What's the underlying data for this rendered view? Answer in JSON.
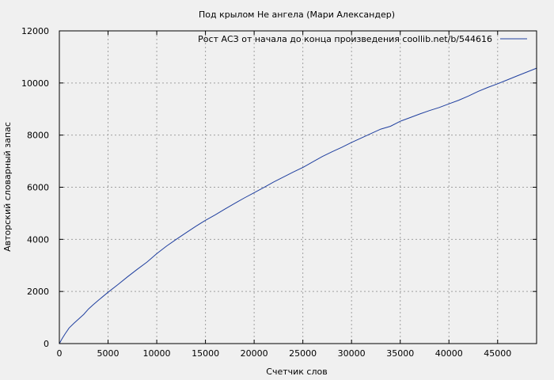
{
  "chart_data": {
    "type": "line",
    "title": "Под крылом Не ангела (Мари Александер)",
    "xlabel": "Счетчик слов",
    "ylabel": "Авторский словарный запас",
    "xlim": [
      0,
      49000
    ],
    "ylim": [
      0,
      12000
    ],
    "xticks": [
      0,
      5000,
      10000,
      15000,
      20000,
      25000,
      30000,
      35000,
      40000,
      45000
    ],
    "yticks": [
      0,
      2000,
      4000,
      6000,
      8000,
      10000,
      12000
    ],
    "grid": true,
    "legend_position": "top-right",
    "series": [
      {
        "name": "Рост АСЗ от начала до конца произведения coollib.net/b/544616",
        "color": "#1f3f9f",
        "x": [
          0,
          300,
          600,
          1000,
          1500,
          2000,
          2500,
          3000,
          3500,
          4000,
          5000,
          6000,
          7000,
          8000,
          9000,
          10000,
          11000,
          12000,
          13000,
          14000,
          15000,
          16000,
          17000,
          18000,
          19000,
          20000,
          21000,
          22000,
          23000,
          24000,
          25000,
          26000,
          27000,
          28000,
          29000,
          30000,
          31000,
          32000,
          33000,
          34000,
          35000,
          36000,
          37000,
          38000,
          39000,
          40000,
          41000,
          42000,
          43000,
          44000,
          45000,
          46000,
          47000,
          48000,
          49000
        ],
        "y": [
          0,
          200,
          380,
          600,
          780,
          950,
          1120,
          1330,
          1500,
          1660,
          1970,
          2260,
          2560,
          2850,
          3130,
          3450,
          3740,
          4000,
          4250,
          4500,
          4730,
          4940,
          5160,
          5380,
          5590,
          5790,
          5990,
          6200,
          6390,
          6580,
          6760,
          6970,
          7180,
          7360,
          7530,
          7720,
          7890,
          8060,
          8230,
          8340,
          8530,
          8670,
          8810,
          8940,
          9060,
          9200,
          9340,
          9500,
          9680,
          9830,
          9970,
          10120,
          10270,
          10420,
          10570
        ]
      }
    ]
  }
}
